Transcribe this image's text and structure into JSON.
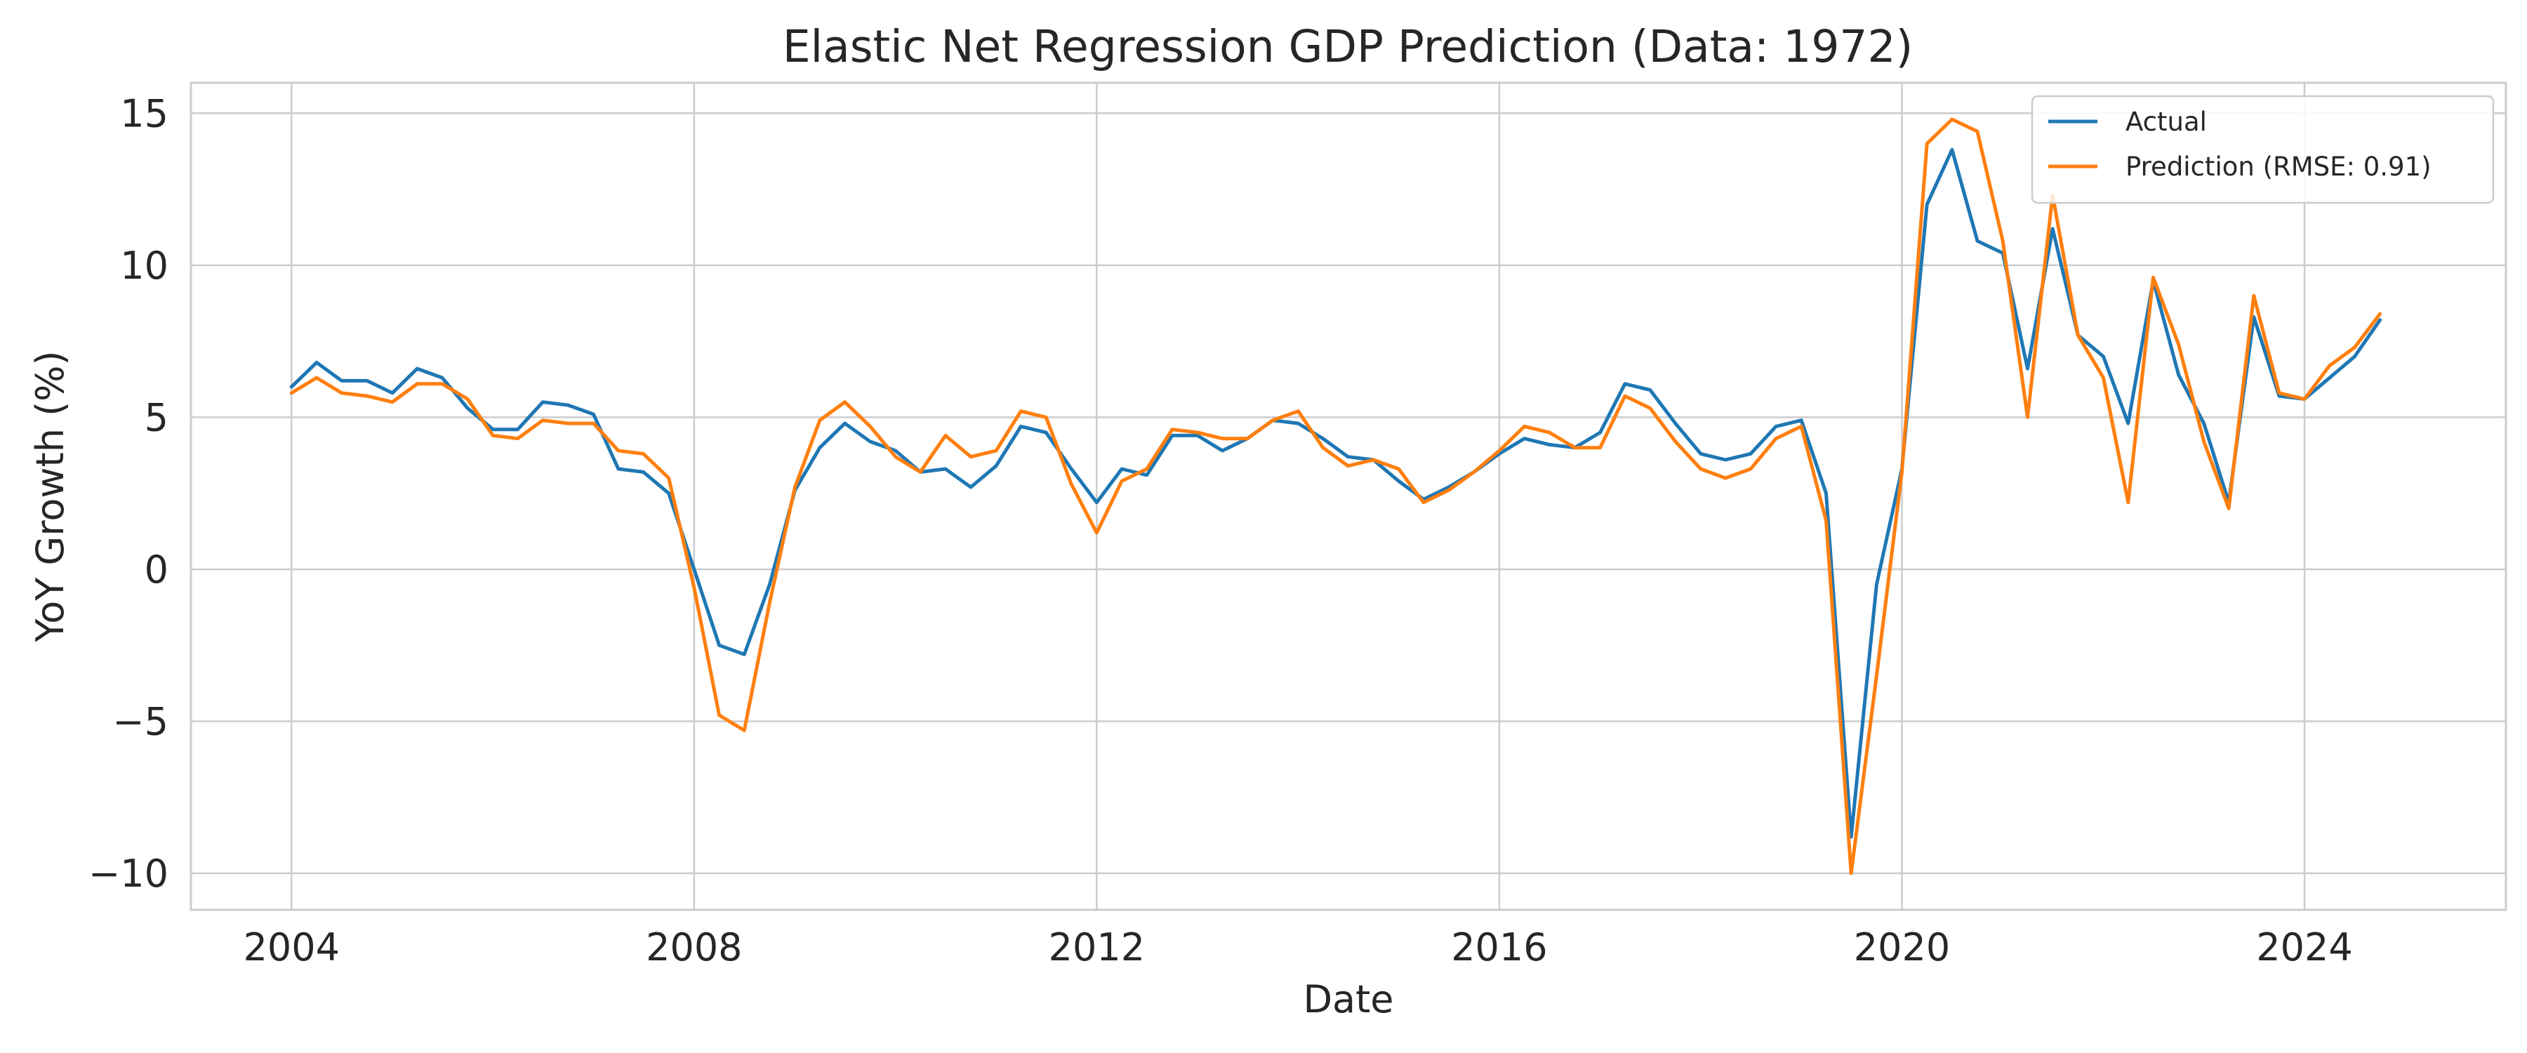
{
  "chart_data": {
    "type": "line",
    "title": "Elastic Net Regression GDP Prediction (Data: 1972)",
    "xlabel": "Date",
    "ylabel": "YoY Growth (%)",
    "xlim": [
      "2003-01-01",
      "2026-01-01"
    ],
    "ylim": [
      -11.2,
      16
    ],
    "x_ticks": [
      {
        "label": "2004",
        "date": "2004-01-01"
      },
      {
        "label": "2008",
        "date": "2008-01-01"
      },
      {
        "label": "2012",
        "date": "2012-01-01"
      },
      {
        "label": "2016",
        "date": "2016-01-01"
      },
      {
        "label": "2020",
        "date": "2020-01-01"
      },
      {
        "label": "2024",
        "date": "2024-01-01"
      }
    ],
    "y_ticks": [
      {
        "label": "−10",
        "value": -10
      },
      {
        "label": "−5",
        "value": -5
      },
      {
        "label": "0",
        "value": 0
      },
      {
        "label": "5",
        "value": 5
      },
      {
        "label": "10",
        "value": 10
      },
      {
        "label": "15",
        "value": 15
      }
    ],
    "grid": true,
    "legend_position": "top-right",
    "x": [
      "2004-01-01",
      "2004-04-01",
      "2004-07-01",
      "2004-10-01",
      "2005-01-01",
      "2005-04-01",
      "2005-07-01",
      "2005-10-01",
      "2006-01-01",
      "2006-04-01",
      "2006-07-01",
      "2006-10-01",
      "2007-01-01",
      "2007-04-01",
      "2007-07-01",
      "2007-10-01",
      "2008-01-01",
      "2008-04-01",
      "2008-07-01",
      "2008-10-01",
      "2009-01-01",
      "2009-04-01",
      "2009-07-01",
      "2009-10-01",
      "2010-01-01",
      "2010-04-01",
      "2010-07-01",
      "2010-10-01",
      "2011-01-01",
      "2011-04-01",
      "2011-07-01",
      "2011-10-01",
      "2012-01-01",
      "2012-04-01",
      "2012-07-01",
      "2012-10-01",
      "2013-01-01",
      "2013-04-01",
      "2013-07-01",
      "2013-10-01",
      "2014-01-01",
      "2014-04-01",
      "2014-07-01",
      "2014-10-01",
      "2015-01-01",
      "2015-04-01",
      "2015-07-01",
      "2015-10-01",
      "2016-01-01",
      "2016-04-01",
      "2016-07-01",
      "2016-10-01",
      "2017-01-01",
      "2017-04-01",
      "2017-07-01",
      "2017-10-01",
      "2018-01-01",
      "2018-04-01",
      "2018-07-01",
      "2018-10-01",
      "2019-01-01",
      "2019-04-01",
      "2019-07-01",
      "2019-10-01",
      "2020-01-01",
      "2020-04-01",
      "2020-07-01",
      "2020-10-01",
      "2021-01-01",
      "2021-04-01",
      "2021-07-01",
      "2021-10-01",
      "2022-01-01",
      "2022-04-01",
      "2022-07-01",
      "2022-10-01",
      "2023-01-01",
      "2023-04-01",
      "2023-07-01",
      "2023-10-01",
      "2024-01-01",
      "2024-04-01",
      "2024-07-01",
      "2024-10-01"
    ],
    "series": [
      {
        "name": "Actual",
        "color": "#1f77b4",
        "values": [
          6.0,
          6.8,
          6.2,
          6.2,
          5.8,
          6.6,
          6.3,
          5.3,
          4.6,
          4.6,
          5.5,
          5.4,
          5.1,
          3.3,
          3.2,
          2.5,
          0.0,
          -2.5,
          -2.8,
          -0.5,
          2.6,
          4.0,
          4.8,
          4.2,
          3.9,
          3.2,
          3.3,
          2.7,
          3.4,
          4.7,
          4.5,
          3.3,
          2.2,
          3.3,
          3.1,
          4.4,
          4.4,
          3.9,
          4.3,
          4.9,
          4.8,
          4.3,
          3.7,
          3.6,
          2.9,
          2.3,
          2.7,
          3.2,
          3.8,
          4.3,
          4.1,
          4.0,
          4.5,
          6.1,
          5.9,
          4.8,
          3.8,
          3.6,
          3.8,
          4.7,
          4.9,
          2.5,
          -8.8,
          -0.5,
          3.3,
          12.0,
          13.8,
          10.8,
          10.4,
          6.6,
          11.2,
          7.7,
          7.0,
          4.8,
          9.5,
          6.4,
          4.8,
          2.2,
          8.3,
          5.7,
          5.6,
          6.3,
          7.0,
          8.2
        ]
      },
      {
        "name": "Prediction (RMSE: 0.91)",
        "color": "#ff7f0e",
        "values": [
          5.8,
          6.3,
          5.8,
          5.7,
          5.5,
          6.1,
          6.1,
          5.6,
          4.4,
          4.3,
          4.9,
          4.8,
          4.8,
          3.9,
          3.8,
          3.0,
          -0.6,
          -4.8,
          -5.3,
          -1.1,
          2.7,
          4.9,
          5.5,
          4.7,
          3.7,
          3.2,
          4.4,
          3.7,
          3.9,
          5.2,
          5.0,
          2.8,
          1.2,
          2.9,
          3.3,
          4.6,
          4.5,
          4.3,
          4.3,
          4.9,
          5.2,
          4.0,
          3.4,
          3.6,
          3.3,
          2.2,
          2.6,
          3.2,
          3.9,
          4.7,
          4.5,
          4.0,
          4.0,
          5.7,
          5.3,
          4.2,
          3.3,
          3.0,
          3.3,
          4.3,
          4.7,
          1.6,
          -10.0,
          -3.5,
          3.2,
          14.0,
          14.8,
          14.4,
          10.8,
          5.0,
          12.3,
          7.7,
          6.3,
          2.2,
          9.6,
          7.4,
          4.2,
          2.0,
          9.0,
          5.8,
          5.6,
          6.7,
          7.3,
          8.4
        ]
      }
    ]
  }
}
